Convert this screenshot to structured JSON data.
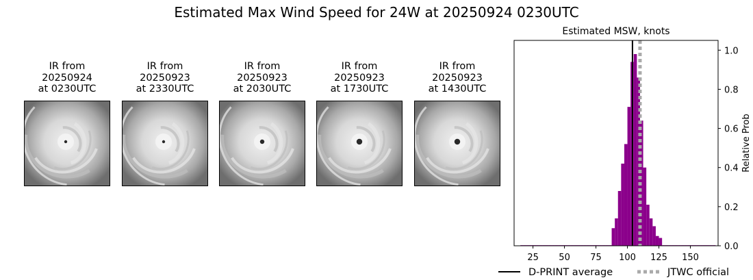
{
  "figure": {
    "title": "Estimated Max Wind Speed for 24W at 20250924 0230UTC"
  },
  "ir_panels": [
    {
      "caption": "IR from\n20250924\nat 0230UTC",
      "eye": "small"
    },
    {
      "caption": "IR from\n20250923\nat 2330UTC",
      "eye": "small"
    },
    {
      "caption": "IR from\n20250923\nat 2030UTC",
      "eye": "medium"
    },
    {
      "caption": "IR from\n20250923\nat 1730UTC",
      "eye": "large"
    },
    {
      "caption": "IR from\n20250923\nat 1430UTC",
      "eye": "large"
    }
  ],
  "chart_data": {
    "type": "bar",
    "title": "Estimated MSW, knots",
    "xlabel": "",
    "ylabel": "Relative Prob",
    "xlim": [
      10,
      172
    ],
    "ylim": [
      0,
      1.05
    ],
    "xticks": [
      25,
      50,
      75,
      100,
      125,
      150
    ],
    "yticks": [
      0.0,
      0.2,
      0.4,
      0.6,
      0.8,
      1.0
    ],
    "yaxis_side": "right",
    "bin_width": 2.5,
    "bar_color": "#8b008b",
    "x": [
      15,
      17.5,
      20,
      22.5,
      25,
      27.5,
      30,
      32.5,
      35,
      37.5,
      40,
      42.5,
      45,
      47.5,
      50,
      52.5,
      55,
      57.5,
      60,
      62.5,
      65,
      67.5,
      70,
      72.5,
      75,
      77.5,
      80,
      82.5,
      85,
      87.5,
      90,
      92.5,
      95,
      97.5,
      100,
      102.5,
      105,
      107.5,
      110,
      112.5,
      115,
      117.5,
      120,
      122.5,
      125,
      127.5,
      130,
      132.5,
      135,
      137.5,
      140,
      142.5,
      145,
      147.5,
      150,
      152.5,
      155,
      157.5,
      160,
      162.5,
      165,
      167.5
    ],
    "values": [
      0.003,
      0.003,
      0.003,
      0.003,
      0.003,
      0.003,
      0.003,
      0.003,
      0.003,
      0.003,
      0.003,
      0.003,
      0.003,
      0.003,
      0.003,
      0.003,
      0.003,
      0.003,
      0.003,
      0.003,
      0.003,
      0.003,
      0.003,
      0.003,
      0.003,
      0.003,
      0.003,
      0.003,
      0.003,
      0.09,
      0.14,
      0.28,
      0.42,
      0.52,
      0.71,
      0.94,
      0.98,
      0.86,
      0.64,
      0.4,
      0.21,
      0.14,
      0.1,
      0.05,
      0.04,
      0.003,
      0.003,
      0.003,
      0.003,
      0.003,
      0.003,
      0.003,
      0.003,
      0.003,
      0.003,
      0.003,
      0.003,
      0.003,
      0.003,
      0.003,
      0.003,
      0.003
    ],
    "lines": [
      {
        "name": "D-PRINT average",
        "x": 104,
        "color": "#000000",
        "style": "solid"
      },
      {
        "name": "JTWC official",
        "x": 110,
        "color": "#aaaaaa",
        "style": "dotted"
      }
    ],
    "legend": "bottom"
  }
}
